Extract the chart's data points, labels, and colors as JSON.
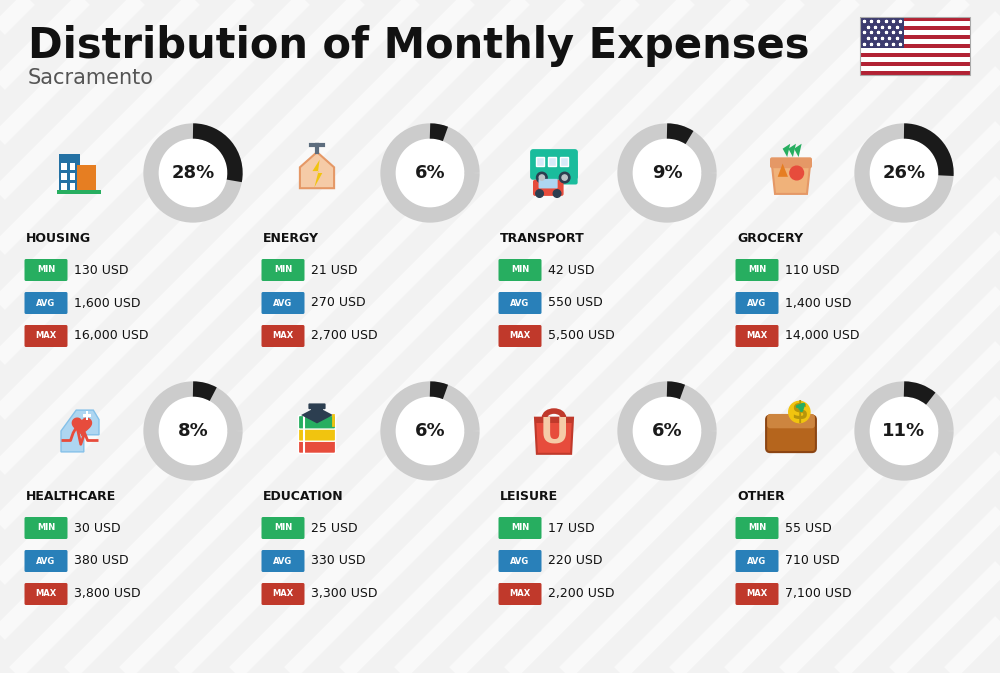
{
  "title": "Distribution of Monthly Expenses",
  "subtitle": "Sacramento",
  "background_color": "#f2f2f2",
  "categories": [
    {
      "name": "HOUSING",
      "pct": 28,
      "min": "130 USD",
      "avg": "1,600 USD",
      "max": "16,000 USD",
      "row": 0,
      "col": 0
    },
    {
      "name": "ENERGY",
      "pct": 6,
      "min": "21 USD",
      "avg": "270 USD",
      "max": "2,700 USD",
      "row": 0,
      "col": 1
    },
    {
      "name": "TRANSPORT",
      "pct": 9,
      "min": "42 USD",
      "avg": "550 USD",
      "max": "5,500 USD",
      "row": 0,
      "col": 2
    },
    {
      "name": "GROCERY",
      "pct": 26,
      "min": "110 USD",
      "avg": "1,400 USD",
      "max": "14,000 USD",
      "row": 0,
      "col": 3
    },
    {
      "name": "HEALTHCARE",
      "pct": 8,
      "min": "30 USD",
      "avg": "380 USD",
      "max": "3,800 USD",
      "row": 1,
      "col": 0
    },
    {
      "name": "EDUCATION",
      "pct": 6,
      "min": "25 USD",
      "avg": "330 USD",
      "max": "3,300 USD",
      "row": 1,
      "col": 1
    },
    {
      "name": "LEISURE",
      "pct": 6,
      "min": "17 USD",
      "avg": "220 USD",
      "max": "2,200 USD",
      "row": 1,
      "col": 2
    },
    {
      "name": "OTHER",
      "pct": 11,
      "min": "55 USD",
      "avg": "710 USD",
      "max": "7,100 USD",
      "row": 1,
      "col": 3
    }
  ],
  "min_color": "#27ae60",
  "avg_color": "#2980b9",
  "max_color": "#c0392b",
  "arc_dark": "#1a1a1a",
  "arc_light": "#cccccc",
  "title_fontsize": 30,
  "subtitle_fontsize": 15,
  "name_fontsize": 9,
  "value_fontsize": 9,
  "badge_fontsize": 6,
  "pct_fontsize": 13,
  "stripe_color": "#ffffff",
  "stripe_alpha": 0.55,
  "stripe_lw": 12
}
